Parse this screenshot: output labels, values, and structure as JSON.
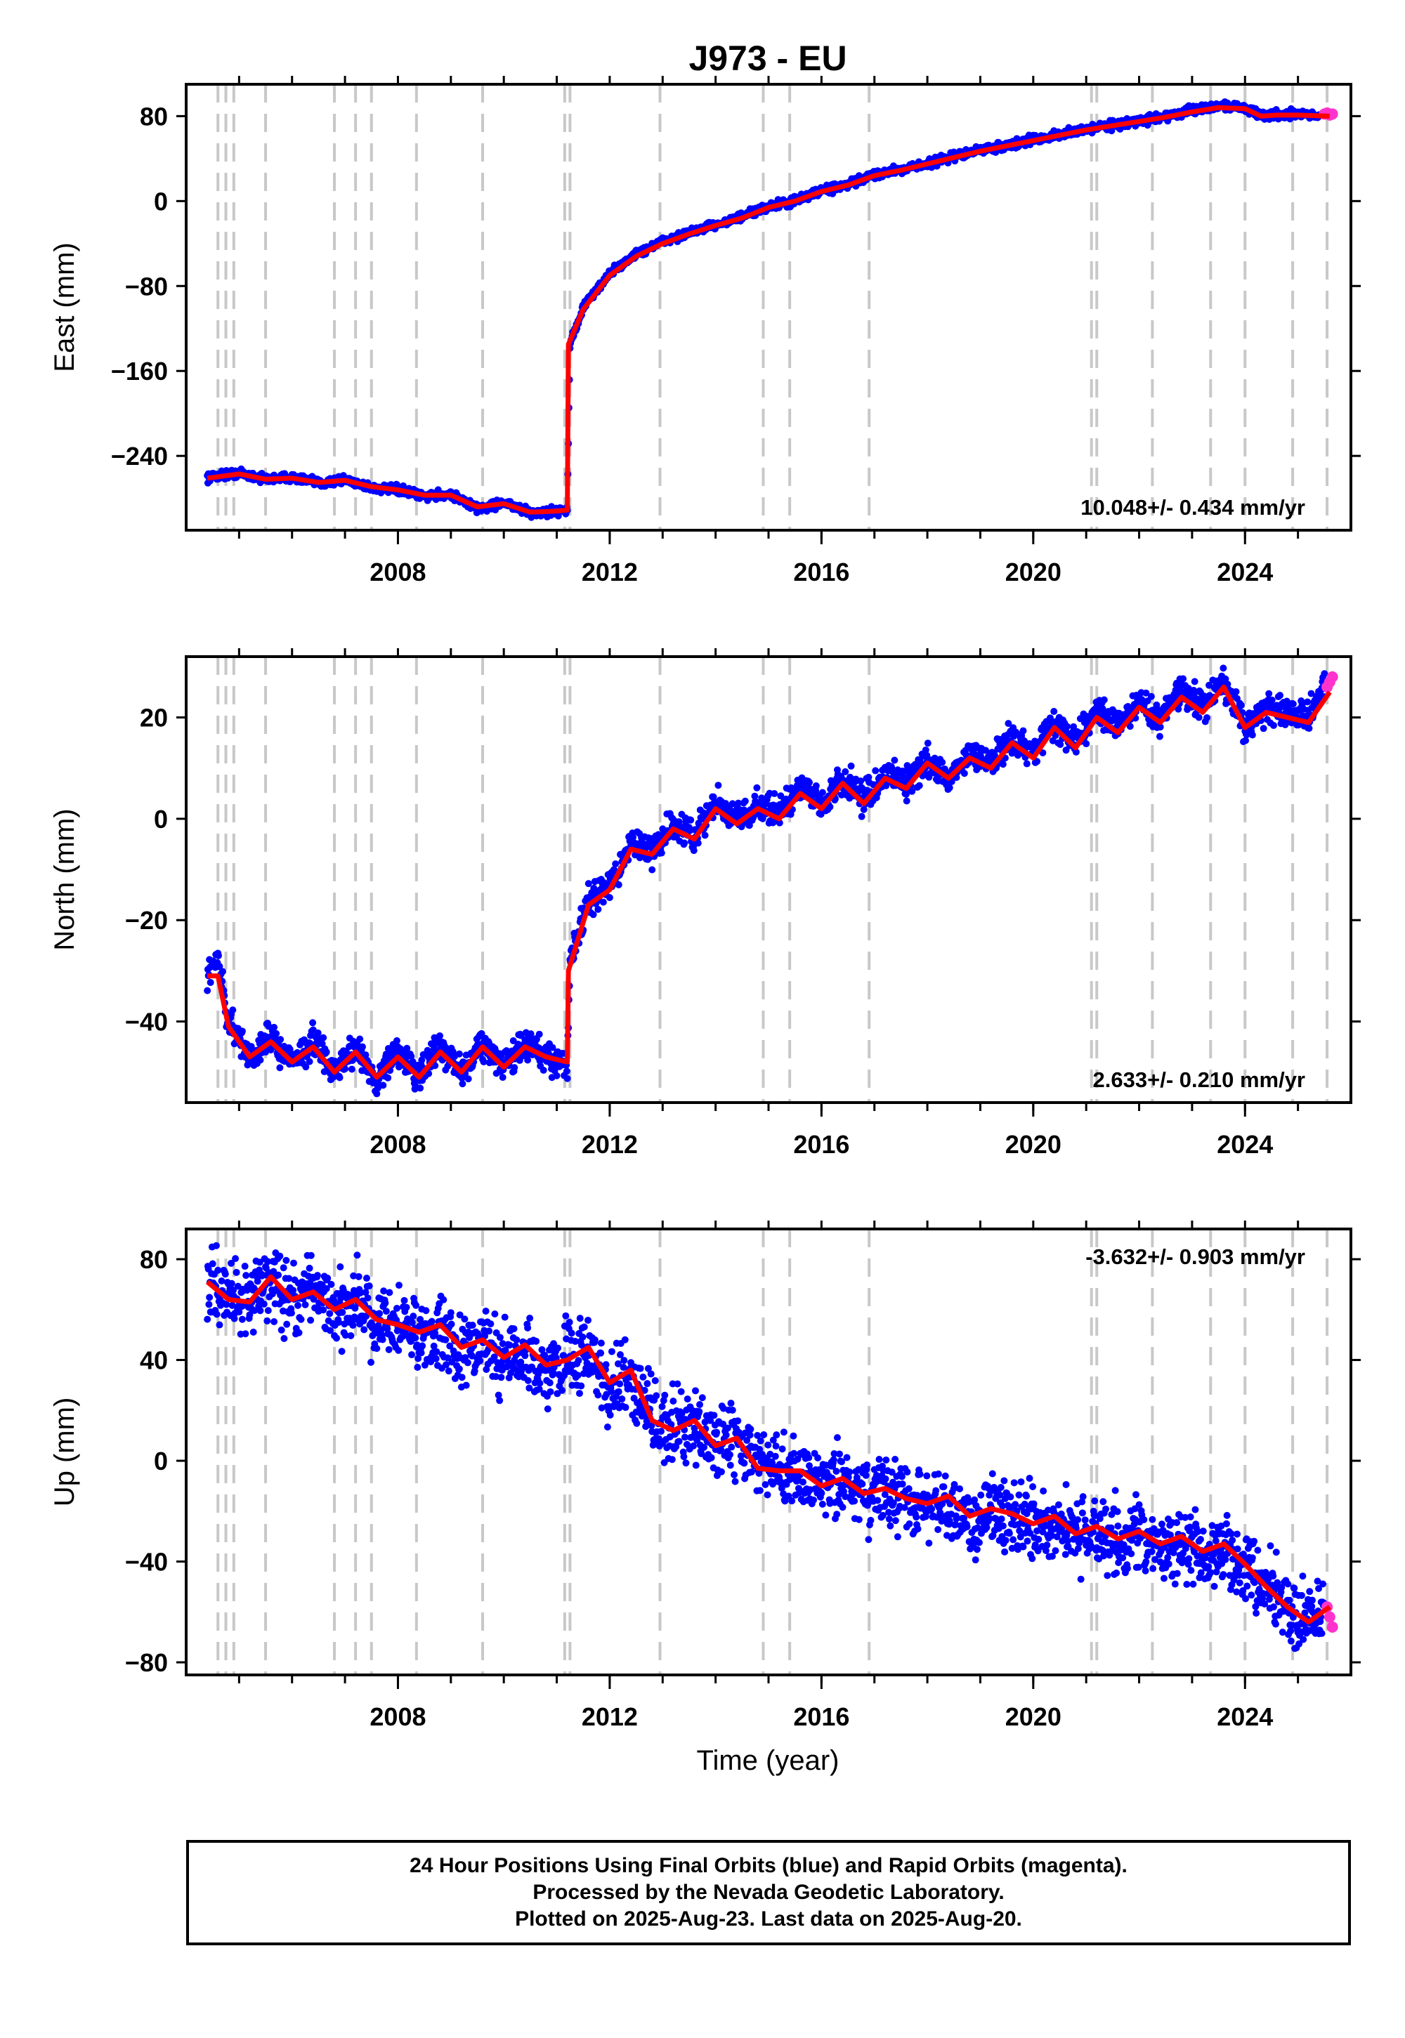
{
  "title": "J973 - EU",
  "xlabel": "Time (year)",
  "footer": {
    "line1": "24 Hour Positions Using Final Orbits (blue) and Rapid Orbits (magenta).",
    "line2": "Processed by the Nevada Geodetic Laboratory.",
    "line3": "Plotted on 2025-Aug-23. Last data on 2025-Aug-20."
  },
  "colors": {
    "final": "#0000ff",
    "rapid": "#ff33cc",
    "model": "#ff0000",
    "steps": "#c8c8c8"
  },
  "x_ticks": [
    2008,
    2012,
    2016,
    2020,
    2024
  ],
  "xlim": [
    2004.0,
    2026.0
  ],
  "equipment_changes": [
    2004.6,
    2004.75,
    2004.9,
    2005.5,
    2006.8,
    2007.2,
    2007.5,
    2008.35,
    2009.6,
    2011.15,
    2011.25,
    2012.95,
    2014.9,
    2015.4,
    2016.9,
    2021.1,
    2021.2,
    2022.25,
    2023.35,
    2024.0,
    2024.9,
    2025.55
  ],
  "chart_data": [
    {
      "type": "scatter",
      "ylabel": "East (mm)",
      "ylim": [
        -310,
        110
      ],
      "y_ticks": [
        80,
        0,
        -80,
        -160,
        -240
      ],
      "rate_label": "10.048+/- 0.434 mm/yr",
      "rate_position": "bottom-right",
      "series": [
        {
          "name": "Final Orbits",
          "x": [
            2004.4,
            2005.0,
            2005.5,
            2006.0,
            2006.5,
            2007.0,
            2007.5,
            2008.0,
            2008.5,
            2009.0,
            2009.5,
            2010.0,
            2010.5,
            2011.0,
            2011.2,
            2011.25,
            2011.5,
            2012.0,
            2012.5,
            2013.0,
            2013.5,
            2014.0,
            2014.5,
            2015.0,
            2015.5,
            2016.0,
            2016.5,
            2017.0,
            2017.5,
            2018.0,
            2018.5,
            2019.0,
            2019.5,
            2020.0,
            2020.5,
            2021.0,
            2021.5,
            2022.0,
            2022.5,
            2023.0,
            2023.5,
            2024.0,
            2024.3,
            2024.6,
            2025.0,
            2025.4
          ],
          "values": [
            -260,
            -256,
            -262,
            -260,
            -266,
            -262,
            -270,
            -272,
            -278,
            -276,
            -290,
            -284,
            -294,
            -292,
            -290,
            -135,
            -100,
            -68,
            -50,
            -38,
            -30,
            -22,
            -15,
            -5,
            0,
            10,
            15,
            25,
            30,
            35,
            42,
            48,
            52,
            58,
            62,
            68,
            72,
            75,
            80,
            85,
            90,
            88,
            80,
            82,
            82,
            80
          ]
        },
        {
          "name": "Rapid Orbits",
          "x": [
            2025.5,
            2025.55,
            2025.6,
            2025.65
          ],
          "values": [
            82,
            83,
            81,
            82
          ]
        }
      ],
      "model": {
        "x": [
          2004.4,
          2005.0,
          2005.5,
          2006.0,
          2006.5,
          2007.0,
          2007.5,
          2008.0,
          2008.5,
          2009.0,
          2009.5,
          2010.0,
          2010.5,
          2011.0,
          2011.2,
          2011.22,
          2011.5,
          2012.0,
          2012.5,
          2013.0,
          2013.5,
          2014.0,
          2014.5,
          2015.0,
          2015.5,
          2016.0,
          2016.5,
          2017.0,
          2017.5,
          2018.0,
          2018.5,
          2019.0,
          2019.5,
          2020.0,
          2020.5,
          2021.0,
          2021.5,
          2022.0,
          2022.5,
          2023.0,
          2023.5,
          2024.0,
          2024.3,
          2024.6,
          2025.0,
          2025.6
        ],
        "values": [
          -261,
          -257,
          -262,
          -261,
          -265,
          -263,
          -269,
          -272,
          -277,
          -277,
          -288,
          -285,
          -293,
          -292,
          -291,
          -135,
          -102,
          -70,
          -52,
          -40,
          -31,
          -23,
          -16,
          -6,
          0,
          9,
          15,
          24,
          29,
          35,
          41,
          47,
          52,
          57,
          62,
          67,
          71,
          75,
          79,
          84,
          88,
          87,
          80,
          81,
          81,
          80
        ]
      }
    },
    {
      "type": "scatter",
      "ylabel": "North (mm)",
      "ylim": [
        -56,
        32
      ],
      "y_ticks": [
        20,
        0,
        -20,
        -40
      ],
      "rate_label": "2.633+/- 0.210 mm/yr",
      "rate_position": "bottom-right",
      "series": [
        {
          "name": "Final Orbits",
          "x": [
            2004.4,
            2004.6,
            2004.8,
            2005.2,
            2005.6,
            2006.0,
            2006.4,
            2006.8,
            2007.2,
            2007.6,
            2008.0,
            2008.4,
            2008.8,
            2009.2,
            2009.6,
            2010.0,
            2010.4,
            2010.8,
            2011.2,
            2011.25,
            2011.6,
            2012.0,
            2012.4,
            2012.8,
            2013.2,
            2013.6,
            2014.0,
            2014.4,
            2014.8,
            2015.2,
            2015.6,
            2016.0,
            2016.4,
            2016.8,
            2017.2,
            2017.6,
            2018.0,
            2018.4,
            2018.8,
            2019.2,
            2019.6,
            2020.0,
            2020.4,
            2020.8,
            2021.2,
            2021.6,
            2022.0,
            2022.4,
            2022.8,
            2023.2,
            2023.6,
            2024.0,
            2024.4,
            2024.8,
            2025.2,
            2025.5
          ],
          "values": [
            -30,
            -28,
            -40,
            -47,
            -43,
            -48,
            -44,
            -50,
            -45,
            -52,
            -46,
            -51,
            -45,
            -50,
            -44,
            -49,
            -44,
            -47,
            -49,
            -28,
            -16,
            -13,
            -5,
            -6,
            -1,
            -3,
            3,
            0,
            3,
            1,
            6,
            3,
            8,
            4,
            9,
            7,
            12,
            8,
            13,
            11,
            16,
            13,
            19,
            15,
            21,
            18,
            23,
            20,
            25,
            22,
            27,
            18,
            22,
            21,
            20,
            26
          ]
        },
        {
          "name": "Rapid Orbits",
          "x": [
            2025.55,
            2025.6,
            2025.65
          ],
          "values": [
            26,
            27,
            28
          ]
        }
      ],
      "model": {
        "x": [
          2004.4,
          2004.6,
          2004.8,
          2005.2,
          2005.6,
          2006.0,
          2006.4,
          2006.8,
          2007.2,
          2007.6,
          2008.0,
          2008.4,
          2008.8,
          2009.2,
          2009.6,
          2010.0,
          2010.4,
          2010.8,
          2011.2,
          2011.22,
          2011.6,
          2012.0,
          2012.4,
          2012.8,
          2013.2,
          2013.6,
          2014.0,
          2014.4,
          2014.8,
          2015.2,
          2015.6,
          2016.0,
          2016.4,
          2016.8,
          2017.2,
          2017.6,
          2018.0,
          2018.4,
          2018.8,
          2019.2,
          2019.6,
          2020.0,
          2020.4,
          2020.8,
          2021.2,
          2021.6,
          2022.0,
          2022.4,
          2022.8,
          2023.2,
          2023.6,
          2024.0,
          2024.4,
          2024.8,
          2025.2,
          2025.6
        ],
        "values": [
          -31,
          -31,
          -41,
          -47,
          -44,
          -48,
          -45,
          -50,
          -46,
          -51,
          -47,
          -51,
          -46,
          -50,
          -45,
          -49,
          -45,
          -47,
          -48,
          -30,
          -17,
          -14,
          -6,
          -7,
          -2,
          -4,
          2,
          -1,
          2,
          0,
          5,
          2,
          7,
          3,
          8,
          6,
          11,
          8,
          12,
          10,
          15,
          12,
          18,
          14,
          20,
          17,
          22,
          19,
          24,
          21,
          26,
          18,
          21,
          20,
          19,
          25
        ]
      }
    },
    {
      "type": "scatter",
      "ylabel": "Up (mm)",
      "ylim": [
        -85,
        92
      ],
      "y_ticks": [
        80,
        40,
        0,
        -40,
        -80
      ],
      "rate_label": "-3.632+/- 0.903 mm/yr",
      "rate_position": "top-right",
      "series": [
        {
          "name": "Final Orbits",
          "x": [
            2004.4,
            2004.8,
            2005.2,
            2005.6,
            2006.0,
            2006.4,
            2006.8,
            2007.2,
            2007.6,
            2008.0,
            2008.4,
            2008.8,
            2009.2,
            2009.6,
            2010.0,
            2010.4,
            2010.8,
            2011.2,
            2011.6,
            2012.0,
            2012.4,
            2012.8,
            2013.2,
            2013.6,
            2014.0,
            2014.4,
            2014.8,
            2015.2,
            2015.6,
            2016.0,
            2016.4,
            2016.8,
            2017.2,
            2017.6,
            2018.0,
            2018.4,
            2018.8,
            2019.2,
            2019.6,
            2020.0,
            2020.4,
            2020.8,
            2021.2,
            2021.6,
            2022.0,
            2022.4,
            2022.8,
            2023.2,
            2023.6,
            2024.0,
            2024.4,
            2024.8,
            2025.2,
            2025.5
          ],
          "values": [
            70,
            65,
            65,
            72,
            62,
            68,
            60,
            63,
            55,
            54,
            50,
            52,
            44,
            48,
            40,
            44,
            36,
            40,
            44,
            30,
            34,
            18,
            12,
            14,
            6,
            8,
            -2,
            -4,
            -6,
            -10,
            -8,
            -14,
            -12,
            -16,
            -18,
            -16,
            -24,
            -20,
            -22,
            -26,
            -24,
            -30,
            -28,
            -32,
            -30,
            -34,
            -32,
            -38,
            -36,
            -42,
            -52,
            -58,
            -64,
            -60
          ]
        },
        {
          "name": "Rapid Orbits",
          "x": [
            2025.55,
            2025.6,
            2025.65
          ],
          "values": [
            -58,
            -62,
            -66
          ]
        }
      ],
      "model": {
        "x": [
          2004.4,
          2004.8,
          2005.2,
          2005.6,
          2006.0,
          2006.4,
          2006.8,
          2007.2,
          2007.6,
          2008.0,
          2008.4,
          2008.8,
          2009.2,
          2009.6,
          2010.0,
          2010.4,
          2010.8,
          2011.2,
          2011.6,
          2012.0,
          2012.4,
          2012.8,
          2013.2,
          2013.6,
          2014.0,
          2014.4,
          2014.8,
          2015.2,
          2015.6,
          2016.0,
          2016.4,
          2016.8,
          2017.2,
          2017.6,
          2018.0,
          2018.4,
          2018.8,
          2019.2,
          2019.6,
          2020.0,
          2020.4,
          2020.8,
          2021.2,
          2021.6,
          2022.0,
          2022.4,
          2022.8,
          2023.2,
          2023.6,
          2024.0,
          2024.4,
          2024.8,
          2025.2,
          2025.6
        ],
        "values": [
          71,
          64,
          63,
          73,
          64,
          67,
          60,
          64,
          56,
          54,
          51,
          54,
          45,
          48,
          41,
          46,
          38,
          40,
          45,
          31,
          36,
          16,
          12,
          16,
          6,
          9,
          -3,
          -4,
          -4,
          -10,
          -7,
          -13,
          -11,
          -15,
          -17,
          -14,
          -22,
          -19,
          -21,
          -25,
          -22,
          -29,
          -26,
          -31,
          -28,
          -33,
          -30,
          -36,
          -33,
          -41,
          -50,
          -58,
          -64,
          -58
        ]
      }
    }
  ]
}
